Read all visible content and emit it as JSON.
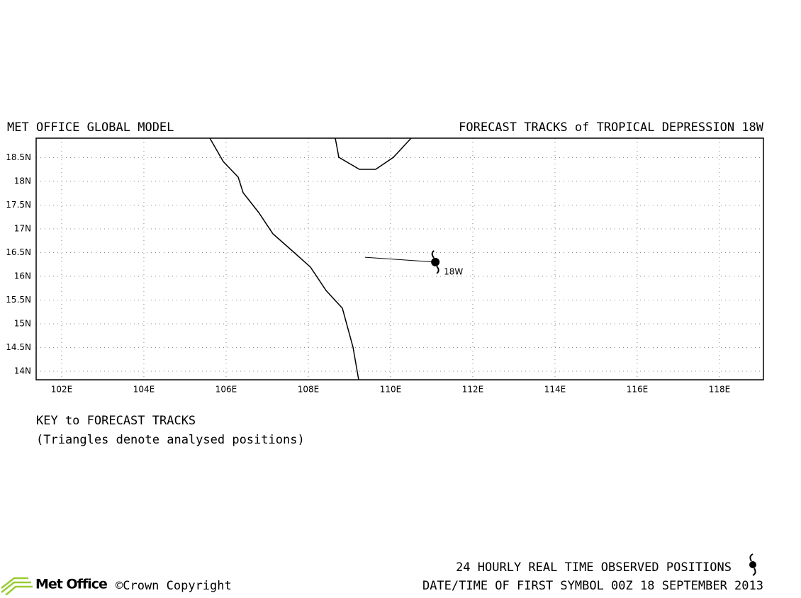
{
  "chart_data": {
    "type": "track-map",
    "title": "MET OFFICE GLOBAL MODEL",
    "subtitle": "FORECAST TRACKS of TROPICAL DEPRESSION 18W",
    "xlim": [
      101.38,
      119.07
    ],
    "ylim": [
      13.82,
      18.91
    ],
    "xticks": [
      {
        "value": 102,
        "label": "102E"
      },
      {
        "value": 104,
        "label": "104E"
      },
      {
        "value": 106,
        "label": "106E"
      },
      {
        "value": 108,
        "label": "108E"
      },
      {
        "value": 110,
        "label": "110E"
      },
      {
        "value": 112,
        "label": "112E"
      },
      {
        "value": 114,
        "label": "114E"
      },
      {
        "value": 116,
        "label": "116E"
      },
      {
        "value": 118,
        "label": "118E"
      }
    ],
    "yticks": [
      {
        "value": 14,
        "label": "14N"
      },
      {
        "value": 14.5,
        "label": "14.5N"
      },
      {
        "value": 15,
        "label": "15N"
      },
      {
        "value": 15.5,
        "label": "15.5N"
      },
      {
        "value": 16,
        "label": "16N"
      },
      {
        "value": 16.5,
        "label": "16.5N"
      },
      {
        "value": 17,
        "label": "17N"
      },
      {
        "value": 17.5,
        "label": "17.5N"
      },
      {
        "value": 18,
        "label": "18N"
      },
      {
        "value": 18.5,
        "label": "18.5N"
      }
    ],
    "grid": true,
    "series": [
      {
        "name": "18W",
        "color": "#000000",
        "x": [
          109.38,
          111.09
        ],
        "values": [
          16.4,
          16.3
        ]
      }
    ],
    "key_title": "KEY to FORECAST TRACKS",
    "key_note": "(Triangles denote analysed positions)",
    "footer_line1": "24 HOURLY REAL TIME OBSERVED POSITIONS",
    "footer_line2": "DATE/TIME OF FIRST SYMBOL 00Z 18 SEPTEMBER 2013",
    "logo": "Met Office",
    "copyright": "©Crown Copyright"
  }
}
